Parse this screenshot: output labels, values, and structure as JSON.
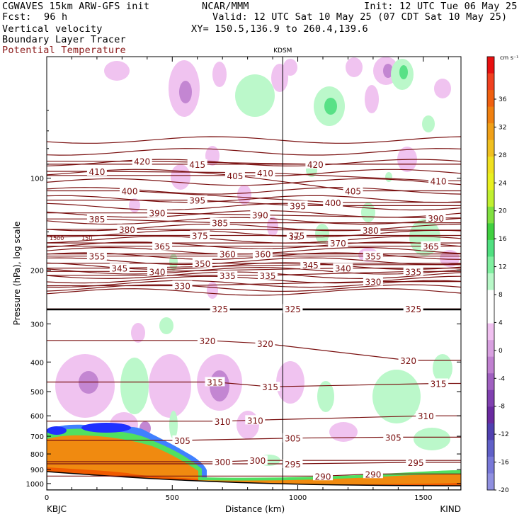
{
  "header": {
    "model": "CGWAVES 15km ARW-GFS init",
    "org": "NCAR/MMM",
    "init": "Init: 12 UTC Tue 06 May 25",
    "fcst_label": "Fcst:",
    "fcst_value": "96 h",
    "valid": "Valid: 12 UTC Sat 10 May 25 (07 CDT Sat 10 May 25)",
    "field1": "Vertical velocity",
    "field2": "Boundary Layer Tracer",
    "field3": "Potential Temperature",
    "xy": "XY= 150.5,136.9 to 260.4,139.6"
  },
  "colors": {
    "theta": "#7a1010",
    "field3_text": "#8b1a1a",
    "tracer_orange": "#f08a10",
    "tracer_dark": "#f05a00"
  },
  "chart_data": {
    "type": "cross-section",
    "xlabel": "Distance (km)",
    "ylabel": "Pressure (hPa), log scale",
    "xlim": [
      0,
      1650
    ],
    "ylim": [
      1050,
      40
    ],
    "x_ticks": [
      0,
      500,
      1000,
      1500
    ],
    "y_ticks": [
      100,
      200,
      300,
      400,
      500,
      600,
      700,
      800,
      900,
      1000
    ],
    "left_station": "KBJC",
    "right_station": "KIND",
    "mid_station": "KDSM",
    "mid_station_km": 940,
    "colorbar": {
      "units": "cm s⁻¹",
      "labels": [
        "36",
        "32",
        "28",
        "24",
        "20",
        "16",
        "12",
        "8",
        "4",
        "0",
        "-4",
        "-8",
        "-12",
        "-16",
        "-20"
      ],
      "colors": [
        "#e81010",
        "#f04020",
        "#f06010",
        "#f08010",
        "#f0a018",
        "#f0c020",
        "#f0e020",
        "#e8f020",
        "#c0f030",
        "#80e040",
        "#40d040",
        "#50e080",
        "#80f0a0",
        "#b8f8c8",
        "#ffffff",
        "#ffffff",
        "#f0c0f0",
        "#d8a0e0",
        "#c080d0",
        "#a060c0",
        "#8040b0",
        "#6a2aa0",
        "#5040b0",
        "#6060c8",
        "#7878d8",
        "#9090e0"
      ]
    },
    "theta_labels": [
      {
        "t": "420",
        "x": 380,
        "p": 88
      },
      {
        "t": "415",
        "x": 600,
        "p": 90
      },
      {
        "t": "420",
        "x": 1070,
        "p": 90
      },
      {
        "t": "410",
        "x": 200,
        "p": 95
      },
      {
        "t": "405",
        "x": 750,
        "p": 98
      },
      {
        "t": "410",
        "x": 870,
        "p": 96
      },
      {
        "t": "405",
        "x": 1220,
        "p": 110
      },
      {
        "t": "410",
        "x": 1560,
        "p": 102
      },
      {
        "t": "400",
        "x": 330,
        "p": 110
      },
      {
        "t": "395",
        "x": 600,
        "p": 118
      },
      {
        "t": "395",
        "x": 1000,
        "p": 123
      },
      {
        "t": "400",
        "x": 1140,
        "p": 120
      },
      {
        "t": "390",
        "x": 440,
        "p": 130
      },
      {
        "t": "390",
        "x": 850,
        "p": 132
      },
      {
        "t": "390",
        "x": 1550,
        "p": 135
      },
      {
        "t": "385",
        "x": 200,
        "p": 136
      },
      {
        "t": "385",
        "x": 690,
        "p": 140
      },
      {
        "t": "380",
        "x": 320,
        "p": 147
      },
      {
        "t": "380",
        "x": 1290,
        "p": 148
      },
      {
        "t": "375",
        "x": 610,
        "p": 154
      },
      {
        "t": "375",
        "x": 995,
        "p": 154
      },
      {
        "t": "370",
        "x": 1160,
        "p": 163
      },
      {
        "t": "365",
        "x": 460,
        "p": 167
      },
      {
        "t": "365",
        "x": 1530,
        "p": 167
      },
      {
        "t": "360",
        "x": 720,
        "p": 177
      },
      {
        "t": "360",
        "x": 860,
        "p": 177
      },
      {
        "t": "355",
        "x": 200,
        "p": 180
      },
      {
        "t": "355",
        "x": 1300,
        "p": 180
      },
      {
        "t": "350",
        "x": 620,
        "p": 190
      },
      {
        "t": "345",
        "x": 290,
        "p": 197
      },
      {
        "t": "345",
        "x": 1050,
        "p": 192
      },
      {
        "t": "340",
        "x": 440,
        "p": 202
      },
      {
        "t": "340",
        "x": 1180,
        "p": 197
      },
      {
        "t": "335",
        "x": 720,
        "p": 208
      },
      {
        "t": "335",
        "x": 880,
        "p": 208
      },
      {
        "t": "335",
        "x": 1460,
        "p": 202
      },
      {
        "t": "330",
        "x": 540,
        "p": 225
      },
      {
        "t": "330",
        "x": 1300,
        "p": 218
      },
      {
        "t": "325",
        "x": 690,
        "p": 268
      },
      {
        "t": "325",
        "x": 980,
        "p": 268
      },
      {
        "t": "325",
        "x": 1460,
        "p": 268
      },
      {
        "t": "320",
        "x": 640,
        "p": 340
      },
      {
        "t": "320",
        "x": 870,
        "p": 348
      },
      {
        "t": "320",
        "x": 1440,
        "p": 395
      },
      {
        "t": "315",
        "x": 670,
        "p": 465
      },
      {
        "t": "315",
        "x": 890,
        "p": 482
      },
      {
        "t": "315",
        "x": 1560,
        "p": 470
      },
      {
        "t": "310",
        "x": 700,
        "p": 625
      },
      {
        "t": "310",
        "x": 830,
        "p": 620
      },
      {
        "t": "310",
        "x": 1510,
        "p": 600
      },
      {
        "t": "305",
        "x": 540,
        "p": 722
      },
      {
        "t": "305",
        "x": 980,
        "p": 710
      },
      {
        "t": "305",
        "x": 1380,
        "p": 705
      },
      {
        "t": "300",
        "x": 700,
        "p": 848
      },
      {
        "t": "300",
        "x": 840,
        "p": 840
      },
      {
        "t": "295",
        "x": 980,
        "p": 862
      },
      {
        "t": "295",
        "x": 1470,
        "p": 852
      },
      {
        "t": "290",
        "x": 1100,
        "p": 945
      },
      {
        "t": "290",
        "x": 1300,
        "p": 930
      }
    ],
    "theta_mini": [
      {
        "t": "1500",
        "x": 40,
        "p": 157
      },
      {
        "t": "150",
        "x": 160,
        "p": 157
      },
      {
        "t": "150",
        "x": 990,
        "p": 157
      }
    ]
  }
}
